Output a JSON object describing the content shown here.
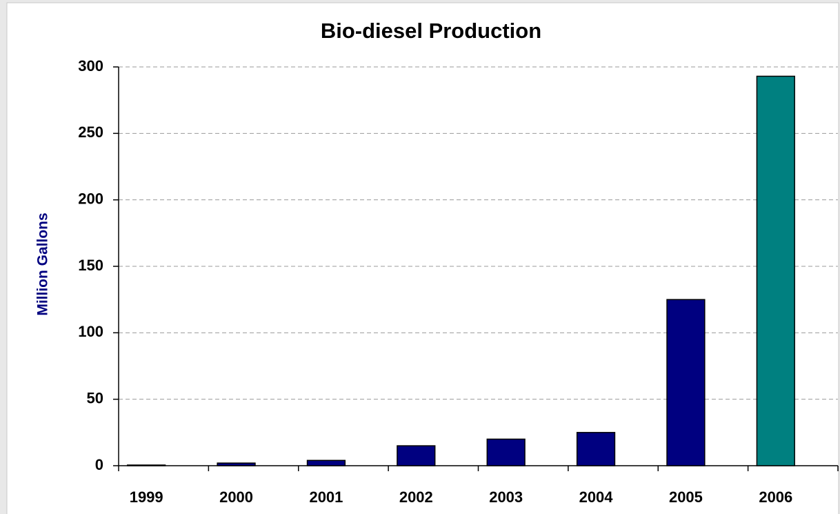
{
  "chart_data": {
    "type": "bar",
    "title": "Bio-diesel Production",
    "y_label": "Million Gallons",
    "categories": [
      "1999",
      "2000",
      "2001",
      "2002",
      "2003",
      "2004",
      "2005",
      "2006"
    ],
    "values": [
      0.5,
      2,
      4,
      15,
      20,
      25,
      125,
      293
    ],
    "colors": [
      "#000080",
      "#000080",
      "#000080",
      "#000080",
      "#000080",
      "#000080",
      "#000080",
      "#008080"
    ],
    "ylim": [
      0,
      300
    ],
    "yticks": [
      0,
      50,
      100,
      150,
      200,
      250,
      300
    ],
    "grid": true
  }
}
